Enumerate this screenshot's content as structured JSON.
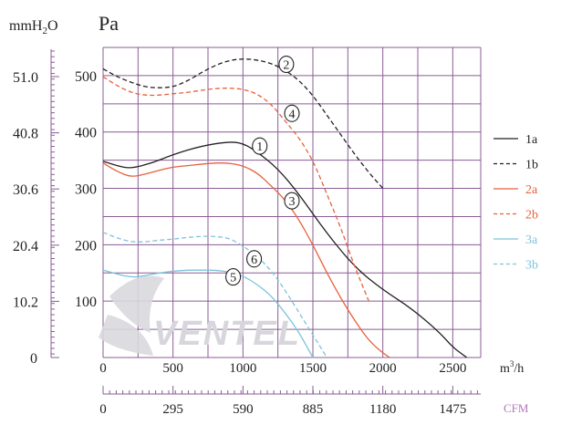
{
  "units": {
    "left_mmh2o": "mmH",
    "left_mmh2o_sub": "2",
    "left_mmh2o_end": "O",
    "left_pa": "Pa",
    "x_m3h": "m",
    "x_m3h_sup": "3",
    "x_m3h_end": "/h",
    "x_cfm": "CFM"
  },
  "watermark": "VENTEL",
  "chart_data": {
    "type": "line",
    "xlabel": "m³/h",
    "ylabel": "Pa",
    "xlim": [
      0,
      2700
    ],
    "ylim": [
      0,
      550
    ],
    "x_ticks": [
      "0",
      "500",
      "1000",
      "1500",
      "2000",
      "2500"
    ],
    "y_ticks": [
      "100",
      "200",
      "300",
      "400",
      "500"
    ],
    "mm_ticks": [
      "51.0",
      "40.8",
      "30.6",
      "20.4",
      "10.2",
      "0"
    ],
    "cfm_ticks": [
      "0",
      "295",
      "590",
      "885",
      "1180",
      "1475"
    ],
    "grid": true,
    "legend_position": "right",
    "series": [
      {
        "name": "1a",
        "color": "#222222",
        "dash": false,
        "tag": "1",
        "x": [
          0,
          100,
          200,
          350,
          500,
          700,
          900,
          1000,
          1100,
          1250,
          1400,
          1600,
          1800,
          2000,
          2200,
          2400,
          2500,
          2600
        ],
        "y": [
          348,
          340,
          335,
          345,
          360,
          375,
          383,
          380,
          365,
          335,
          290,
          220,
          160,
          120,
          88,
          46,
          18,
          0
        ]
      },
      {
        "name": "1b",
        "color": "#222222",
        "dash": true,
        "tag": "2",
        "x": [
          0,
          100,
          200,
          300,
          400,
          500,
          600,
          700,
          800,
          900,
          1000,
          1100,
          1200,
          1300,
          1400,
          1500,
          1600,
          1700,
          1800,
          1900,
          2000
        ],
        "y": [
          512,
          498,
          488,
          480,
          478,
          480,
          490,
          505,
          518,
          527,
          530,
          528,
          522,
          510,
          492,
          465,
          430,
          395,
          360,
          328,
          300
        ]
      },
      {
        "name": "2a",
        "color": "#e8603c",
        "dash": false,
        "tag": "3",
        "x": [
          0,
          100,
          200,
          300,
          400,
          500,
          600,
          700,
          800,
          900,
          1000,
          1100,
          1200,
          1300,
          1400,
          1500,
          1600,
          1700,
          1800,
          1900,
          2000,
          2050
        ],
        "y": [
          345,
          330,
          320,
          325,
          332,
          338,
          340,
          343,
          345,
          345,
          340,
          328,
          305,
          280,
          245,
          200,
          150,
          105,
          65,
          30,
          8,
          0
        ]
      },
      {
        "name": "2b",
        "color": "#e8603c",
        "dash": true,
        "tag": "4",
        "x": [
          0,
          100,
          200,
          300,
          400,
          500,
          600,
          700,
          800,
          900,
          1000,
          1100,
          1200,
          1300,
          1400,
          1500,
          1600,
          1700,
          1800,
          1900
        ],
        "y": [
          498,
          482,
          470,
          465,
          465,
          468,
          470,
          474,
          477,
          478,
          476,
          468,
          450,
          420,
          390,
          350,
          290,
          230,
          160,
          100
        ]
      },
      {
        "name": "3a",
        "color": "#7ec2dc",
        "dash": false,
        "tag": "5",
        "x": [
          0,
          100,
          200,
          300,
          400,
          500,
          600,
          700,
          800,
          900,
          1000,
          1100,
          1200,
          1300,
          1400,
          1500
        ],
        "y": [
          155,
          148,
          142,
          145,
          150,
          153,
          155,
          155,
          155,
          152,
          145,
          130,
          110,
          80,
          45,
          0
        ]
      },
      {
        "name": "3b",
        "color": "#7ec2dc",
        "dash": true,
        "tag": "6",
        "x": [
          0,
          100,
          200,
          300,
          400,
          500,
          600,
          700,
          800,
          900,
          1000,
          1100,
          1200,
          1300,
          1400,
          1500,
          1600
        ],
        "y": [
          222,
          212,
          205,
          205,
          208,
          210,
          213,
          215,
          215,
          212,
          198,
          180,
          155,
          120,
          80,
          40,
          0
        ]
      }
    ],
    "curve_tags": [
      {
        "tag": "1",
        "x": 1120,
        "y": 375
      },
      {
        "tag": "2",
        "x": 1310,
        "y": 520
      },
      {
        "tag": "3",
        "x": 1350,
        "y": 278
      },
      {
        "tag": "4",
        "x": 1350,
        "y": 433
      },
      {
        "tag": "5",
        "x": 930,
        "y": 143
      },
      {
        "tag": "6",
        "x": 1080,
        "y": 175
      }
    ]
  }
}
